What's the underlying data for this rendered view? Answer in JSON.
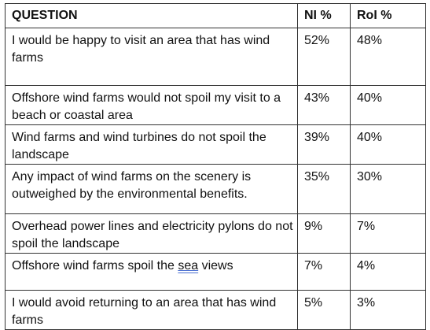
{
  "table": {
    "headers": [
      "QUESTION",
      "NI %",
      "RoI %"
    ],
    "rows": [
      {
        "question": "I would be happy to visit an area that has wind farms",
        "ni": "52%",
        "roi": "48%"
      },
      {
        "question": "Offshore wind farms would not spoil my visit to a beach or coastal area",
        "ni": "43%",
        "roi": "40%"
      },
      {
        "question": "Wind farms and wind turbines do not spoil the landscape",
        "ni": "39%",
        "roi": "40%"
      },
      {
        "question": "Any impact of wind farms on the scenery is outweighed by the environmental benefits.",
        "ni": "35%",
        "roi": "30%"
      },
      {
        "question": "Overhead power lines and electricity pylons do not spoil the landscape",
        "ni": "9%",
        "roi": "7%"
      },
      {
        "question_prefix": "Offshore wind farms spoil the ",
        "question_marked": "sea",
        "question_suffix": " views",
        "ni": "7%",
        "roi": "4%"
      },
      {
        "question": "I would avoid returning to an area that has wind farms",
        "ni": "5%",
        "roi": "3%"
      }
    ]
  }
}
